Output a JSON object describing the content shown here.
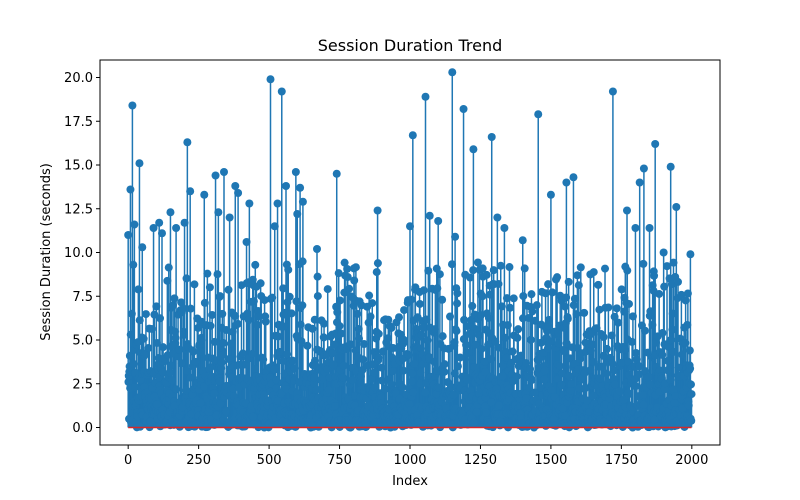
{
  "chart_data": {
    "type": "scatter",
    "variant": "stem",
    "title": "Session Duration Trend",
    "xlabel": "Index",
    "ylabel": "Session Duration (seconds)",
    "xlim": [
      -100,
      2100
    ],
    "ylim": [
      -1,
      21
    ],
    "xticks": [
      0,
      250,
      500,
      750,
      1000,
      1250,
      1500,
      1750,
      2000
    ],
    "xtick_labels": [
      "0",
      "250",
      "500",
      "750",
      "1000",
      "1250",
      "1500",
      "1750",
      "2000"
    ],
    "yticks": [
      0.0,
      2.5,
      5.0,
      7.5,
      10.0,
      12.5,
      15.0,
      17.5,
      20.0
    ],
    "ytick_labels": [
      "0.0",
      "2.5",
      "5.0",
      "7.5",
      "10.0",
      "12.5",
      "15.0",
      "17.5",
      "20.0"
    ],
    "grid": false,
    "legend": "none",
    "color": "#1f77b4",
    "n_points": 2000,
    "peaks": [
      {
        "x": 0,
        "y": 11.0
      },
      {
        "x": 8,
        "y": 13.6
      },
      {
        "x": 15,
        "y": 18.4
      },
      {
        "x": 22,
        "y": 11.6
      },
      {
        "x": 40,
        "y": 15.1
      },
      {
        "x": 50,
        "y": 10.3
      },
      {
        "x": 90,
        "y": 11.4
      },
      {
        "x": 110,
        "y": 11.7
      },
      {
        "x": 120,
        "y": 11.1
      },
      {
        "x": 150,
        "y": 12.3
      },
      {
        "x": 170,
        "y": 11.4
      },
      {
        "x": 200,
        "y": 11.7
      },
      {
        "x": 210,
        "y": 16.3
      },
      {
        "x": 220,
        "y": 13.5
      },
      {
        "x": 270,
        "y": 13.3
      },
      {
        "x": 310,
        "y": 14.4
      },
      {
        "x": 320,
        "y": 12.3
      },
      {
        "x": 340,
        "y": 14.6
      },
      {
        "x": 360,
        "y": 12.0
      },
      {
        "x": 380,
        "y": 13.8
      },
      {
        "x": 390,
        "y": 13.4
      },
      {
        "x": 420,
        "y": 10.6
      },
      {
        "x": 430,
        "y": 12.8
      },
      {
        "x": 505,
        "y": 19.9
      },
      {
        "x": 520,
        "y": 11.5
      },
      {
        "x": 530,
        "y": 12.8
      },
      {
        "x": 545,
        "y": 19.2
      },
      {
        "x": 560,
        "y": 13.8
      },
      {
        "x": 595,
        "y": 14.6
      },
      {
        "x": 600,
        "y": 12.2
      },
      {
        "x": 610,
        "y": 13.7
      },
      {
        "x": 620,
        "y": 12.9
      },
      {
        "x": 670,
        "y": 10.2
      },
      {
        "x": 740,
        "y": 14.5
      },
      {
        "x": 885,
        "y": 12.4
      },
      {
        "x": 1000,
        "y": 11.5
      },
      {
        "x": 1010,
        "y": 16.7
      },
      {
        "x": 1055,
        "y": 18.9
      },
      {
        "x": 1070,
        "y": 12.1
      },
      {
        "x": 1100,
        "y": 11.8
      },
      {
        "x": 1150,
        "y": 20.3
      },
      {
        "x": 1160,
        "y": 10.9
      },
      {
        "x": 1190,
        "y": 18.2
      },
      {
        "x": 1225,
        "y": 15.9
      },
      {
        "x": 1290,
        "y": 16.6
      },
      {
        "x": 1310,
        "y": 12.0
      },
      {
        "x": 1335,
        "y": 11.4
      },
      {
        "x": 1400,
        "y": 10.7
      },
      {
        "x": 1455,
        "y": 17.9
      },
      {
        "x": 1500,
        "y": 13.3
      },
      {
        "x": 1555,
        "y": 14.0
      },
      {
        "x": 1580,
        "y": 14.3
      },
      {
        "x": 1720,
        "y": 19.2
      },
      {
        "x": 1770,
        "y": 12.4
      },
      {
        "x": 1800,
        "y": 11.4
      },
      {
        "x": 1815,
        "y": 14.0
      },
      {
        "x": 1830,
        "y": 14.8
      },
      {
        "x": 1850,
        "y": 11.4
      },
      {
        "x": 1870,
        "y": 16.2
      },
      {
        "x": 1900,
        "y": 10.0
      },
      {
        "x": 1925,
        "y": 14.9
      },
      {
        "x": 1945,
        "y": 12.6
      },
      {
        "x": 1995,
        "y": 9.9
      }
    ]
  }
}
